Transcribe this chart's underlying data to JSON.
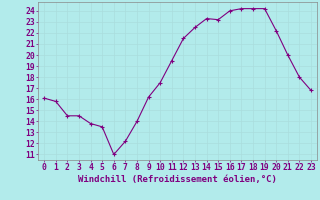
{
  "x": [
    0,
    1,
    2,
    3,
    4,
    5,
    6,
    7,
    8,
    9,
    10,
    11,
    12,
    13,
    14,
    15,
    16,
    17,
    18,
    19,
    20,
    21,
    22,
    23
  ],
  "y": [
    16.1,
    15.8,
    14.5,
    14.5,
    13.8,
    13.5,
    11.0,
    12.2,
    14.0,
    16.2,
    17.5,
    19.5,
    21.5,
    22.5,
    23.3,
    23.2,
    24.0,
    24.2,
    24.2,
    24.2,
    22.2,
    20.0,
    18.0,
    16.8
  ],
  "line_color": "#800080",
  "marker": "+",
  "marker_size": 3,
  "bg_color": "#b2ebeb",
  "grid_color": "#aadddd",
  "xlabel": "Windchill (Refroidissement éolien,°C)",
  "ylabel_ticks": [
    11,
    12,
    13,
    14,
    15,
    16,
    17,
    18,
    19,
    20,
    21,
    22,
    23,
    24
  ],
  "ylim": [
    10.5,
    24.8
  ],
  "xlim": [
    -0.5,
    23.5
  ],
  "tick_label_color": "#800080",
  "axis_label_color": "#800080",
  "xlabel_fontsize": 6.5,
  "tick_fontsize": 5.8,
  "linewidth": 0.8
}
